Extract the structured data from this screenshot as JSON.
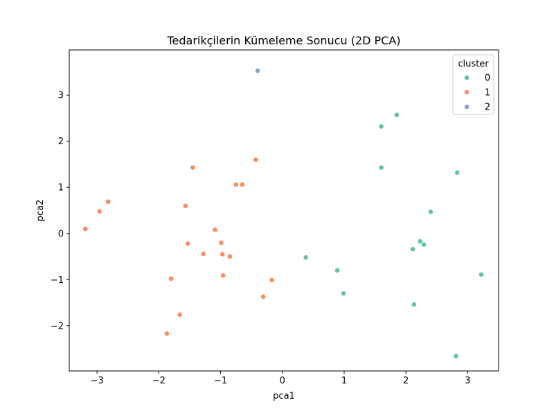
{
  "chart_data": {
    "type": "scatter",
    "title": "Tedarikçilerin Kümeleme Sonucu (2D PCA)",
    "xlabel": "pca1",
    "ylabel": "pca2",
    "xlim": [
      -3.45,
      3.5
    ],
    "ylim": [
      -2.98,
      3.98
    ],
    "xticks": [
      -3,
      -2,
      -1,
      0,
      1,
      2,
      3
    ],
    "yticks": [
      -2,
      -1,
      0,
      1,
      2,
      3
    ],
    "xtick_labels": [
      "−3",
      "−2",
      "−1",
      "0",
      "1",
      "2",
      "3"
    ],
    "ytick_labels": [
      "−2",
      "−1",
      "0",
      "1",
      "2",
      "3"
    ],
    "grid": false,
    "legend": {
      "title": "cluster",
      "placement": "top-right"
    },
    "series": [
      {
        "name": "0",
        "color": "#66c2a5",
        "points": [
          [
            1.6,
            2.32
          ],
          [
            1.85,
            2.57
          ],
          [
            1.6,
            1.43
          ],
          [
            2.83,
            1.32
          ],
          [
            2.4,
            0.47
          ],
          [
            2.23,
            -0.17
          ],
          [
            2.29,
            -0.24
          ],
          [
            2.11,
            -0.34
          ],
          [
            0.38,
            -0.52
          ],
          [
            0.89,
            -0.8
          ],
          [
            3.22,
            -0.89
          ],
          [
            0.99,
            -1.3
          ],
          [
            2.13,
            -1.54
          ],
          [
            2.81,
            -2.66
          ]
        ]
      },
      {
        "name": "1",
        "color": "#fc8d62",
        "points": [
          [
            -0.43,
            1.6
          ],
          [
            -1.45,
            1.43
          ],
          [
            -0.75,
            1.06
          ],
          [
            -0.65,
            1.06
          ],
          [
            -2.82,
            0.69
          ],
          [
            -2.96,
            0.48
          ],
          [
            -1.57,
            0.6
          ],
          [
            -3.19,
            0.1
          ],
          [
            -1.09,
            0.08
          ],
          [
            -0.99,
            -0.2
          ],
          [
            -1.53,
            -0.22
          ],
          [
            -1.28,
            -0.44
          ],
          [
            -0.97,
            -0.45
          ],
          [
            -0.85,
            -0.5
          ],
          [
            -0.96,
            -0.91
          ],
          [
            -1.8,
            -0.98
          ],
          [
            -0.17,
            -1.01
          ],
          [
            -0.31,
            -1.37
          ],
          [
            -1.66,
            -1.76
          ],
          [
            -1.87,
            -2.17
          ]
        ]
      },
      {
        "name": "2",
        "color": "#8da0cb",
        "points": [
          [
            -0.4,
            3.53
          ]
        ]
      }
    ]
  }
}
